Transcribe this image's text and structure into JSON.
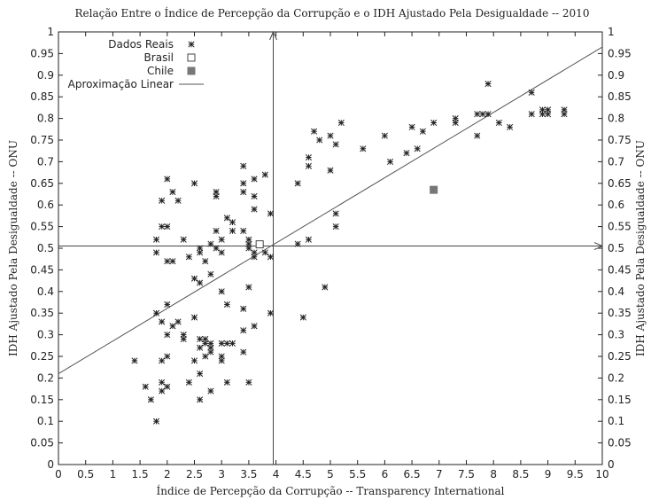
{
  "chart_data": {
    "type": "scatter",
    "title": "Relação Entre o Índice de Percepção da Corrupção e o IDH Ajustado Pela Desigualdade -- 2010",
    "xlabel": "Índice de Percepção da Corrupção -- Transparency International",
    "ylabel": "IDH Ajustado Pela Desigualdade -- ONU",
    "y2label": "IDH Ajustado Pela Desigualdade -- ONU",
    "xlim": [
      0,
      10
    ],
    "ylim": [
      0,
      1
    ],
    "xticks": [
      "0",
      "0.5",
      "1",
      "1.5",
      "2",
      "2.5",
      "3",
      "3.5",
      "4",
      "4.5",
      "5",
      "5.5",
      "6",
      "6.5",
      "7",
      "7.5",
      "8",
      "8.5",
      "9",
      "9.5",
      "10"
    ],
    "yticks": [
      "0",
      "0.05",
      "0.1",
      "0.15",
      "0.2",
      "0.25",
      "0.3",
      "0.35",
      "0.4",
      "0.45",
      "0.5",
      "0.55",
      "0.6",
      "0.65",
      "0.7",
      "0.75",
      "0.8",
      "0.85",
      "0.9",
      "0.95",
      "1"
    ],
    "grid": false,
    "legend_position": "top-left",
    "reference_lines": {
      "x": 3.95,
      "y": 0.505
    },
    "series": [
      {
        "name": "Dados Reais",
        "marker": "asterisk",
        "points": [
          [
            1.4,
            0.24
          ],
          [
            1.6,
            0.18
          ],
          [
            1.7,
            0.15
          ],
          [
            1.8,
            0.1
          ],
          [
            1.8,
            0.35
          ],
          [
            1.8,
            0.52
          ],
          [
            1.8,
            0.49
          ],
          [
            1.9,
            0.19
          ],
          [
            1.9,
            0.17
          ],
          [
            1.9,
            0.24
          ],
          [
            1.9,
            0.33
          ],
          [
            1.9,
            0.55
          ],
          [
            1.9,
            0.61
          ],
          [
            2.0,
            0.66
          ],
          [
            2.0,
            0.47
          ],
          [
            2.0,
            0.37
          ],
          [
            2.0,
            0.18
          ],
          [
            2.0,
            0.25
          ],
          [
            2.0,
            0.55
          ],
          [
            2.0,
            0.3
          ],
          [
            2.1,
            0.47
          ],
          [
            2.1,
            0.63
          ],
          [
            2.1,
            0.32
          ],
          [
            2.2,
            0.33
          ],
          [
            2.2,
            0.61
          ],
          [
            2.3,
            0.3
          ],
          [
            2.3,
            0.52
          ],
          [
            2.3,
            0.29
          ],
          [
            2.4,
            0.48
          ],
          [
            2.4,
            0.19
          ],
          [
            2.5,
            0.65
          ],
          [
            2.5,
            0.43
          ],
          [
            2.5,
            0.34
          ],
          [
            2.5,
            0.24
          ],
          [
            2.6,
            0.49
          ],
          [
            2.6,
            0.42
          ],
          [
            2.6,
            0.29
          ],
          [
            2.6,
            0.15
          ],
          [
            2.6,
            0.27
          ],
          [
            2.6,
            0.5
          ],
          [
            2.6,
            0.21
          ],
          [
            2.7,
            0.28
          ],
          [
            2.7,
            0.25
          ],
          [
            2.7,
            0.47
          ],
          [
            2.7,
            0.29
          ],
          [
            2.8,
            0.51
          ],
          [
            2.8,
            0.44
          ],
          [
            2.8,
            0.27
          ],
          [
            2.8,
            0.26
          ],
          [
            2.8,
            0.17
          ],
          [
            2.8,
            0.28
          ],
          [
            2.9,
            0.62
          ],
          [
            2.9,
            0.54
          ],
          [
            2.9,
            0.5
          ],
          [
            2.9,
            0.63
          ],
          [
            3.0,
            0.4
          ],
          [
            3.0,
            0.25
          ],
          [
            3.0,
            0.28
          ],
          [
            3.0,
            0.49
          ],
          [
            3.0,
            0.52
          ],
          [
            3.0,
            0.24
          ],
          [
            3.1,
            0.57
          ],
          [
            3.1,
            0.37
          ],
          [
            3.1,
            0.19
          ],
          [
            3.1,
            0.28
          ],
          [
            3.2,
            0.56
          ],
          [
            3.2,
            0.54
          ],
          [
            3.2,
            0.28
          ],
          [
            3.4,
            0.69
          ],
          [
            3.4,
            0.65
          ],
          [
            3.4,
            0.63
          ],
          [
            3.4,
            0.54
          ],
          [
            3.4,
            0.36
          ],
          [
            3.4,
            0.31
          ],
          [
            3.4,
            0.26
          ],
          [
            3.5,
            0.51
          ],
          [
            3.5,
            0.5
          ],
          [
            3.5,
            0.41
          ],
          [
            3.5,
            0.19
          ],
          [
            3.5,
            0.52
          ],
          [
            3.6,
            0.66
          ],
          [
            3.6,
            0.62
          ],
          [
            3.6,
            0.59
          ],
          [
            3.6,
            0.49
          ],
          [
            3.6,
            0.32
          ],
          [
            3.6,
            0.48
          ],
          [
            3.8,
            0.67
          ],
          [
            3.8,
            0.49
          ],
          [
            3.9,
            0.58
          ],
          [
            3.9,
            0.48
          ],
          [
            3.9,
            0.35
          ],
          [
            4.4,
            0.65
          ],
          [
            4.4,
            0.51
          ],
          [
            4.5,
            0.34
          ],
          [
            4.6,
            0.71
          ],
          [
            4.6,
            0.69
          ],
          [
            4.6,
            0.52
          ],
          [
            4.7,
            0.77
          ],
          [
            4.8,
            0.75
          ],
          [
            4.9,
            0.41
          ],
          [
            5.0,
            0.76
          ],
          [
            5.0,
            0.68
          ],
          [
            5.1,
            0.74
          ],
          [
            5.1,
            0.58
          ],
          [
            5.1,
            0.55
          ],
          [
            5.2,
            0.79
          ],
          [
            5.6,
            0.73
          ],
          [
            6.0,
            0.76
          ],
          [
            6.1,
            0.7
          ],
          [
            6.4,
            0.72
          ],
          [
            6.5,
            0.78
          ],
          [
            6.6,
            0.73
          ],
          [
            6.7,
            0.77
          ],
          [
            6.9,
            0.79
          ],
          [
            7.3,
            0.8
          ],
          [
            7.3,
            0.79
          ],
          [
            7.7,
            0.81
          ],
          [
            7.7,
            0.76
          ],
          [
            7.8,
            0.81
          ],
          [
            7.9,
            0.88
          ],
          [
            7.9,
            0.81
          ],
          [
            8.1,
            0.79
          ],
          [
            8.3,
            0.78
          ],
          [
            8.7,
            0.86
          ],
          [
            8.7,
            0.81
          ],
          [
            8.9,
            0.82
          ],
          [
            8.9,
            0.81
          ],
          [
            9.0,
            0.81
          ],
          [
            9.0,
            0.82
          ],
          [
            9.3,
            0.82
          ],
          [
            9.3,
            0.81
          ]
        ]
      },
      {
        "name": "Brasil",
        "marker": "open-square",
        "points": [
          [
            3.7,
            0.509
          ]
        ]
      },
      {
        "name": "Chile",
        "marker": "filled-square",
        "color": "#777777",
        "points": [
          [
            6.9,
            0.635
          ]
        ]
      },
      {
        "name": "Aproximação Linear",
        "type": "line",
        "intercept": 0.21,
        "slope": 0.0755
      }
    ]
  }
}
